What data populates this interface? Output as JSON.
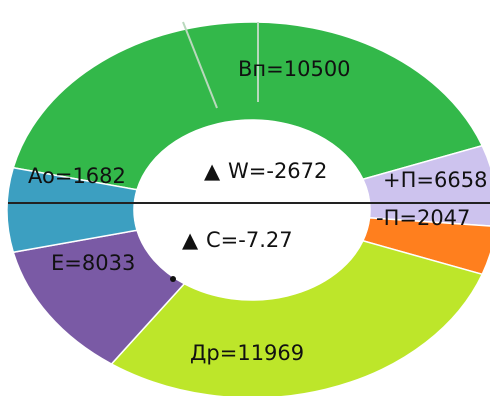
{
  "chart_data": {
    "type": "pie",
    "variant": "donut",
    "slices": [
      {
        "label": "Вп=10500",
        "value": 10500,
        "color": "#33b84a"
      },
      {
        "label": "+П=6658",
        "value": 6658,
        "color": "#cdc3ee"
      },
      {
        "label": "-П=2047",
        "value": 2047,
        "color": "#ff7f1e"
      },
      {
        "label": "Др=11969",
        "value": 11969,
        "color": "#bde62a"
      },
      {
        "label": "E=8033",
        "value": 8033,
        "color": "#7a5aa5"
      },
      {
        "label": "Ao=1682",
        "value": 1682,
        "color": "#3c9fc1"
      }
    ],
    "center_top": "W=-2672",
    "center_bottom": "C=-7.27",
    "center_marker": "▲",
    "title": "",
    "legend": "none"
  }
}
